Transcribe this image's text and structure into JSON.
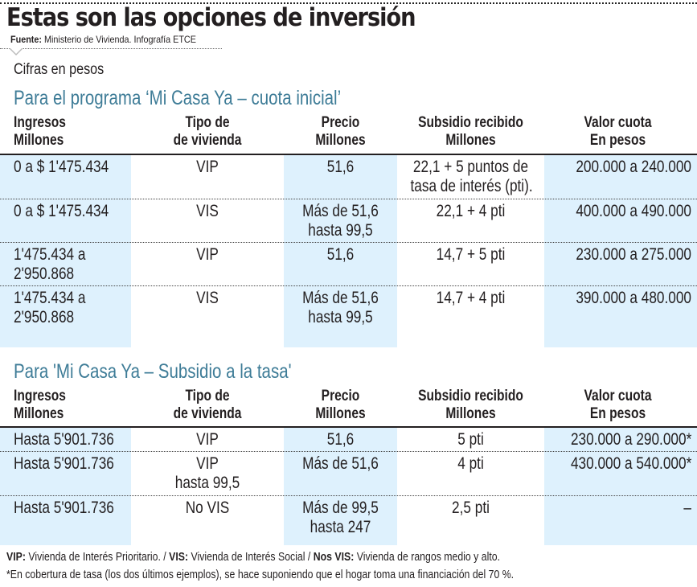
{
  "title": "Estas son las opciones de inversión",
  "source": {
    "label": "Fuente:",
    "text": "Ministerio de Vivienda. Infografía ETCE"
  },
  "units_note": "Cifras en pesos",
  "colors": {
    "section_title": "#3e7c97",
    "column_shading": "#def1fd",
    "text": "#231f20"
  },
  "headers": {
    "ingresos": [
      "Ingresos",
      "Millones"
    ],
    "tipo": [
      "Tipo de",
      "de vivienda"
    ],
    "precio": [
      "Precio",
      "Millones"
    ],
    "subsidio": [
      "Subsidio recibido",
      "Millones"
    ],
    "valor": [
      "Valor cuota",
      "En pesos"
    ]
  },
  "table1": {
    "title": "Para el programa ‘Mi Casa Ya – cuota inicial’",
    "rows": [
      {
        "ingresos": [
          "0 a $ 1'475.434"
        ],
        "tipo": [
          "VIP"
        ],
        "precio": [
          "51,6"
        ],
        "subsidio": [
          "22,1 + 5 puntos de",
          "tasa de interés (pti)."
        ],
        "valor": [
          "200.000 a 240.000"
        ]
      },
      {
        "ingresos": [
          "0 a $ 1'475.434"
        ],
        "tipo": [
          "VIS"
        ],
        "precio": [
          "Más de  51,6",
          "hasta 99,5"
        ],
        "subsidio": [
          "22,1  + 4 pti"
        ],
        "valor": [
          "400.000 a 490.000"
        ]
      },
      {
        "ingresos": [
          "1'475.434 a",
          "2'950.868"
        ],
        "tipo": [
          "VIP"
        ],
        "precio": [
          "51,6"
        ],
        "subsidio": [
          "14,7 + 5 pti"
        ],
        "valor": [
          "230.000 a 275.000"
        ]
      },
      {
        "ingresos": [
          "1'475.434 a",
          "2'950.868"
        ],
        "tipo": [
          "VIS"
        ],
        "precio": [
          "Más de 51,6",
          "hasta 99,5"
        ],
        "subsidio": [
          "14,7 + 4 pti"
        ],
        "valor": [
          "390.000 a 480.000"
        ]
      }
    ]
  },
  "table2": {
    "title": "Para 'Mi Casa Ya – Subsidio a la tasa'",
    "rows": [
      {
        "ingresos": [
          "Hasta 5'901.736"
        ],
        "tipo": [
          "VIP"
        ],
        "precio": [
          "51,6"
        ],
        "subsidio": [
          "5 pti"
        ],
        "valor": [
          "230.000 a 290.000*"
        ]
      },
      {
        "ingresos": [
          "Hasta 5'901.736"
        ],
        "tipo": [
          "VIP",
          "hasta 99,5"
        ],
        "precio": [
          "Más de 51,6"
        ],
        "subsidio": [
          "4 pti"
        ],
        "valor": [
          "430.000 a 540.000*"
        ]
      },
      {
        "ingresos": [
          "Hasta 5'901.736"
        ],
        "tipo": [
          "No VIS"
        ],
        "precio": [
          "Más de 99,5",
          "hasta  247"
        ],
        "subsidio": [
          "2,5 pti"
        ],
        "valor": [
          "–"
        ]
      }
    ]
  },
  "footnotes": {
    "vip_label": "VIP:",
    "vip_text": " Vivienda de Interés Prioritario.  / ",
    "vis_label": "VIS:",
    "vis_text": " Vivienda de Interés Social  / ",
    "novis_label": "Nos VIS:",
    "novis_text": " Vivienda de rangos medio y alto.",
    "asterisk": "*En cobertura de tasa (los dos últimos ejemplos), se hace suponiendo que el hogar toma una financiación del 70 %."
  }
}
